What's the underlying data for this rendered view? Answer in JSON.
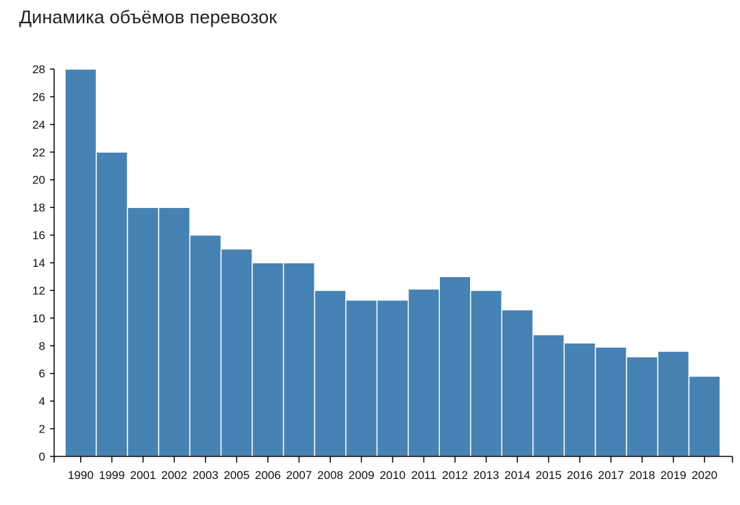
{
  "chart_data": {
    "type": "bar",
    "title": "Динамика объёмов перевозок",
    "xlabel": "",
    "ylabel": "",
    "categories": [
      "1990",
      "1999",
      "2001",
      "2002",
      "2003",
      "2005",
      "2006",
      "2007",
      "2008",
      "2009",
      "2010",
      "2011",
      "2012",
      "2013",
      "2014",
      "2015",
      "2016",
      "2017",
      "2018",
      "2019",
      "2020"
    ],
    "values": [
      28,
      22,
      18,
      18,
      16,
      15,
      14,
      14,
      12,
      11.3,
      11.3,
      12.1,
      13,
      12,
      10.6,
      8.8,
      8.2,
      7.9,
      7.2,
      7.6,
      5.8
    ],
    "ylim": [
      0,
      28
    ],
    "yticks": [
      0,
      2,
      4,
      6,
      8,
      10,
      12,
      14,
      16,
      18,
      20,
      22,
      24,
      26,
      28
    ],
    "grid": false,
    "legend": "none",
    "bar_color": "#4682b4",
    "bar_edge_color": "#ffffff",
    "axis_color": "#000000"
  }
}
